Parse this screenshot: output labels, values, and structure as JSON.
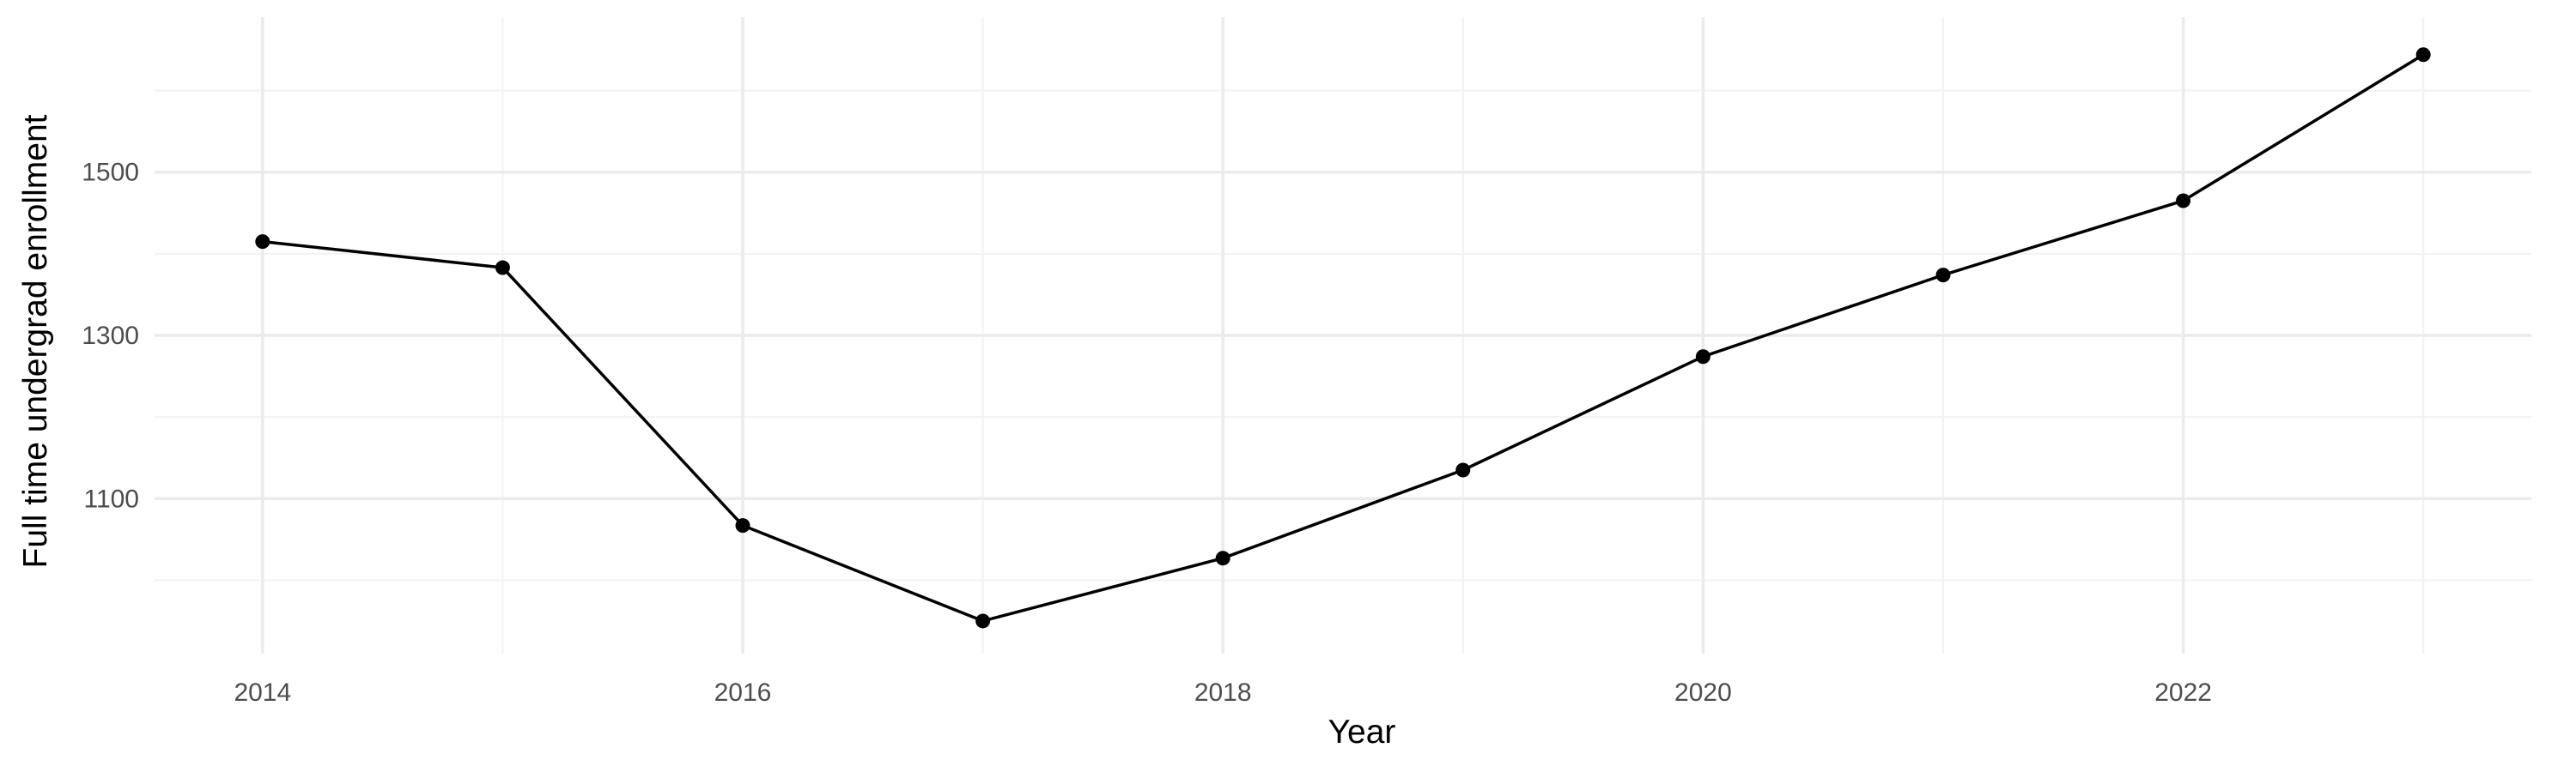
{
  "chart_data": {
    "type": "line",
    "title": "",
    "xlabel": "Year",
    "ylabel": "Full time undergrad enrollment",
    "x": [
      2014,
      2015,
      2016,
      2017,
      2018,
      2019,
      2020,
      2021,
      2022,
      2023
    ],
    "series": [
      {
        "values": [
          1415,
          1383,
          1067,
          950,
          1027,
          1135,
          1274,
          1374,
          1465,
          1644
        ]
      }
    ],
    "xlim": [
      2013.55,
      2023.45
    ],
    "ylim": [
      910,
      1690
    ],
    "x_ticks": [
      2014,
      2016,
      2018,
      2020,
      2022
    ],
    "x_tick_labels": [
      "2014",
      "2016",
      "2018",
      "2020",
      "2022"
    ],
    "y_ticks": [
      1100,
      1300,
      1500
    ],
    "y_tick_labels": [
      "1100",
      "1300",
      "1500"
    ],
    "x_minor_ticks": [
      2015,
      2017,
      2019,
      2021,
      2023
    ],
    "y_minor_ticks": [
      1000,
      1200,
      1400,
      1600
    ],
    "grid": true,
    "legend": "none",
    "colors": {
      "line": "#000000",
      "point": "#000000",
      "grid_major": "#ebebeb",
      "grid_minor": "#f2f2f2",
      "tick_text": "#4d4d4d",
      "background": "#ffffff"
    }
  }
}
